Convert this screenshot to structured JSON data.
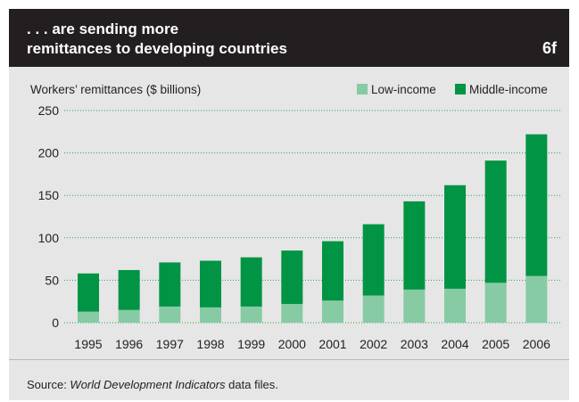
{
  "header": {
    "title_line1": ". . . are sending more",
    "title_line2": "remittances to developing countries",
    "figure_number": "6f"
  },
  "colors": {
    "low_income": "#86cba3",
    "middle_income": "#009444",
    "header_bg": "#231f20",
    "panel_bg": "#e6e6e6",
    "gridline": "#2f9a5a"
  },
  "chart_data": {
    "type": "bar",
    "stacked": true,
    "categories": [
      "1995",
      "1996",
      "1997",
      "1998",
      "1999",
      "2000",
      "2001",
      "2002",
      "2003",
      "2004",
      "2005",
      "2006"
    ],
    "series": [
      {
        "name": "Low-income",
        "values": [
          13,
          15,
          19,
          18,
          19,
          22,
          26,
          32,
          39,
          40,
          47,
          55
        ]
      },
      {
        "name": "Middle-income",
        "values": [
          45,
          47,
          52,
          55,
          58,
          63,
          70,
          84,
          104,
          122,
          144,
          167
        ]
      }
    ],
    "ylabel": "Workers’ remittances ($ billions)",
    "ylim": [
      0,
      250
    ],
    "yticks": [
      0,
      50,
      100,
      150,
      200,
      250
    ],
    "grid": true,
    "legend_position": "top-right"
  },
  "source": {
    "prefix": "Source: ",
    "italic": "World Development Indicators",
    "suffix": " data files."
  }
}
